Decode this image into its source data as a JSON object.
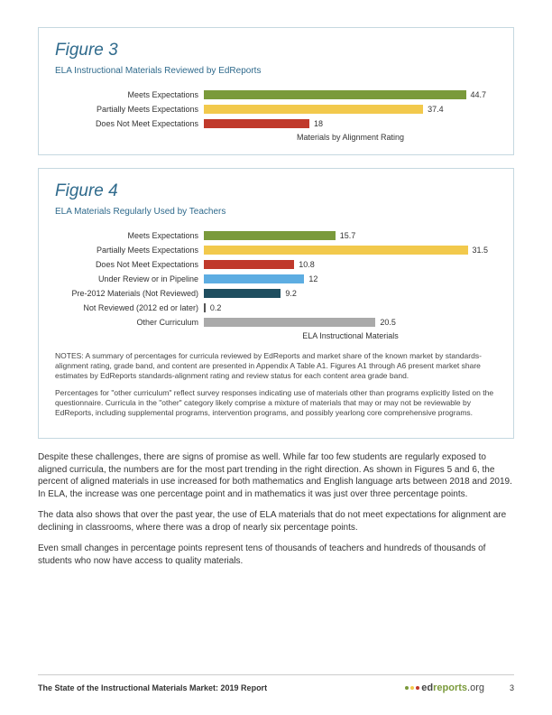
{
  "figure3": {
    "title": "Figure 3",
    "subtitle": "ELA Instructional Materials Reviewed by EdReports",
    "xaxis_label": "Materials by Alignment Rating",
    "max_value": 50,
    "bars": [
      {
        "label": "Meets Expectations",
        "value": 44.7,
        "color": "#7a9a3b"
      },
      {
        "label": "Partially Meets Expectations",
        "value": 37.4,
        "color": "#f2c94c"
      },
      {
        "label": "Does Not Meet Expectations",
        "value": 18,
        "color": "#c0392b"
      }
    ]
  },
  "figure4": {
    "title": "Figure 4",
    "subtitle": "ELA Materials Regularly Used by Teachers",
    "xaxis_label": "ELA Instructional Materials",
    "max_value": 35,
    "bars": [
      {
        "label": "Meets Expectations",
        "value": 15.7,
        "color": "#7a9a3b"
      },
      {
        "label": "Partially Meets Expectations",
        "value": 31.5,
        "color": "#f2c94c"
      },
      {
        "label": "Does Not Meet Expectations",
        "value": 10.8,
        "color": "#c0392b"
      },
      {
        "label": "Under Review or in Pipeline",
        "value": 12,
        "color": "#5dade2"
      },
      {
        "label": "Pre-2012 Materials (Not Reviewed)",
        "value": 9.2,
        "color": "#1f4e5f"
      },
      {
        "label": "Not Reviewed (2012 ed or later)",
        "value": 0.2,
        "color": "#555555"
      },
      {
        "label": "Other Curriculum",
        "value": 20.5,
        "color": "#aaaaaa"
      }
    ],
    "notes": [
      "NOTES: A summary of percentages for curricula reviewed by EdReports and market share of the known market by standards-alignment rating, grade band, and content are presented in Appendix A Table A1. Figures A1 through A6 present market share estimates by EdReports standards-alignment rating and review status for each content area grade band.",
      "Percentages for \"other curriculum\" reflect survey responses indicating use of materials other than programs explicitly listed on the questionnaire. Curricula in the \"other\" category likely comprise a mixture of materials that may or may not be reviewable by EdReports, including supplemental programs, intervention programs, and possibly yearlong core comprehensive programs."
    ]
  },
  "body": {
    "paragraphs": [
      "Despite these challenges, there are signs of promise as well. While far too few students are regularly exposed to aligned curricula, the numbers are for the most part trending in the right direction. As shown in Figures 5 and 6, the percent of aligned materials in use increased for both mathematics and English language arts between 2018 and 2019. In ELA, the increase was one percentage point and in mathematics it was just over three percentage points.",
      "The data also shows that over the past year, the use of ELA materials that do not meet expectations for alignment are declining in classrooms, where there was a drop of nearly six percentage points.",
      "Even small changes in percentage points represent tens of thousands of teachers and hundreds of thousands of students who now have access to quality materials."
    ]
  },
  "footer": {
    "title": "The State of the Instructional Materials Market: 2019 Report",
    "logo_ed": "ed",
    "logo_reports": "reports",
    "logo_org": ".org",
    "page_number": "3",
    "dot_colors": [
      "#7a9a3b",
      "#f2c94c",
      "#c0392b"
    ]
  }
}
